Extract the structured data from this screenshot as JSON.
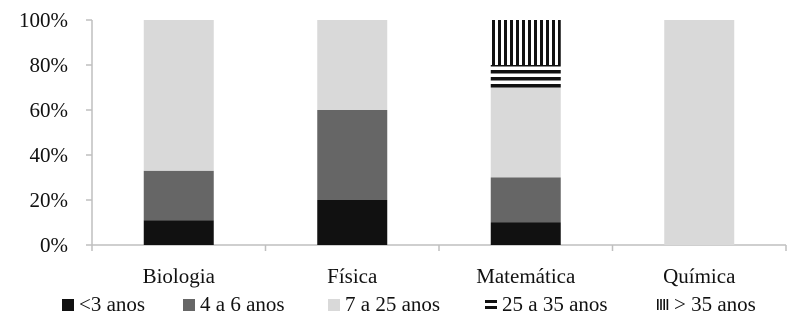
{
  "chart_data": {
    "type": "bar",
    "stacked": true,
    "percent": true,
    "categories": [
      "Biologia",
      "Física",
      "Matemática",
      "Química"
    ],
    "series": [
      {
        "name": "<3 anos",
        "values": [
          11,
          20,
          10,
          0
        ],
        "color": "#111111",
        "pattern": "solid"
      },
      {
        "name": "4 a 6 anos",
        "values": [
          22,
          40,
          20,
          0
        ],
        "color": "#666666",
        "pattern": "solid"
      },
      {
        "name": "7 a 25 anos",
        "values": [
          67,
          40,
          40,
          100
        ],
        "color": "#d9d9d9",
        "pattern": "solid"
      },
      {
        "name": "25 a 35 anos",
        "values": [
          0,
          0,
          10,
          0
        ],
        "color": "#111111",
        "pattern": "horizontal-stripes"
      },
      {
        "name": "> 35 anos",
        "values": [
          0,
          0,
          20,
          0
        ],
        "color": "#111111",
        "pattern": "vertical-stripes"
      }
    ],
    "y_ticks": [
      "0%",
      "20%",
      "40%",
      "60%",
      "80%",
      "100%"
    ],
    "ylim": [
      0,
      100
    ],
    "grid": false,
    "legend_position": "bottom"
  }
}
